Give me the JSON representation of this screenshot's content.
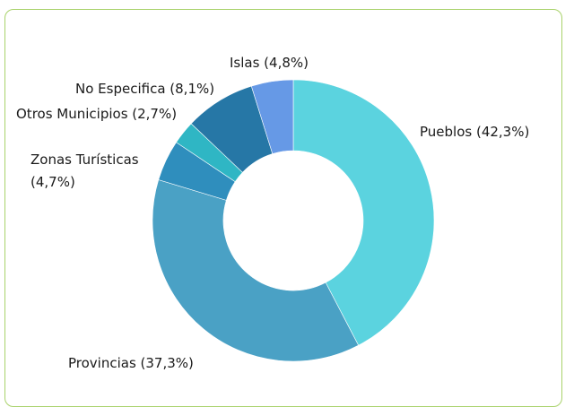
{
  "chart_data": {
    "type": "pie",
    "donut": true,
    "start_angle_deg": 0,
    "direction": "clockwise",
    "slices": [
      {
        "label": "Pueblos (42,3%)",
        "value": 42.3,
        "color": "#5bd3df"
      },
      {
        "label": "Provincias (37,3%)",
        "value": 37.3,
        "color": "#4aa1c5"
      },
      {
        "label": "Zonas Turísticas (4,7%)",
        "value": 4.7,
        "color": "#2f8ebd"
      },
      {
        "label": "Otros Municipios (2,7%)",
        "value": 2.7,
        "color": "#2fb6c4"
      },
      {
        "label": "No Especifica (8,1%)",
        "value": 8.1,
        "color": "#2677a6"
      },
      {
        "label": "Islas (4,8%)",
        "value": 4.8,
        "color": "#6699e6"
      }
    ],
    "labels_display": [
      {
        "lines": [
          "Pueblos (42,3%)"
        ]
      },
      {
        "lines": [
          "Provincias (37,3%)"
        ]
      },
      {
        "lines": [
          "Zonas Turísticas",
          "(4,7%)"
        ]
      },
      {
        "lines": [
          "Otros Municipios (2,7%)"
        ]
      },
      {
        "lines": [
          "No Especifica (8,1%)"
        ]
      },
      {
        "lines": [
          "Islas (4,8%)"
        ]
      }
    ],
    "legend": "none"
  }
}
